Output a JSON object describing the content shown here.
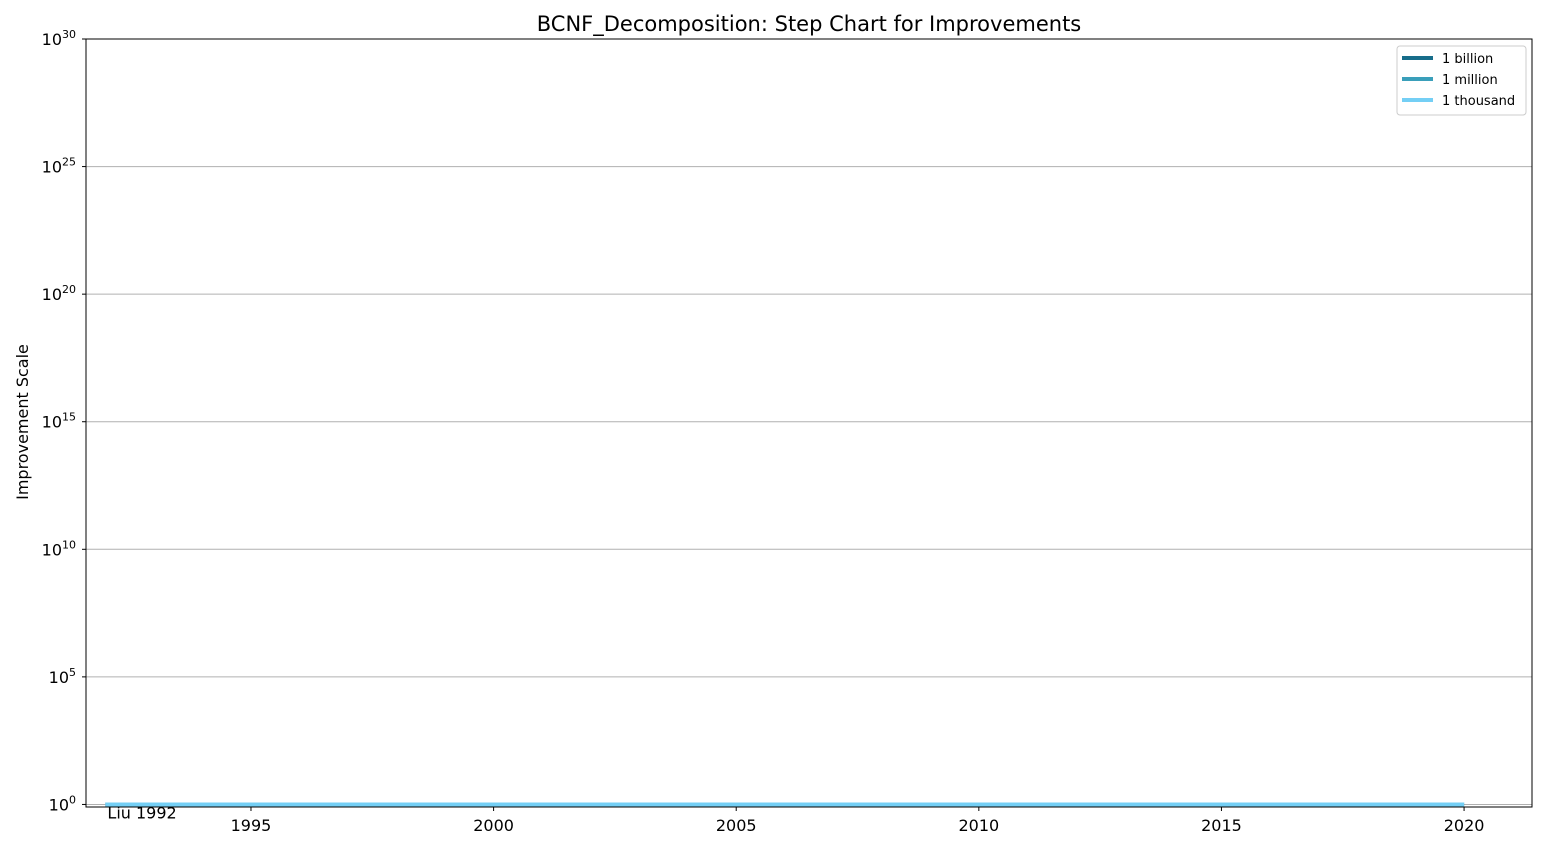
{
  "chart_data": {
    "type": "line",
    "step": true,
    "title": "BCNF_Decomposition: Step Chart for Improvements",
    "xlabel": "",
    "ylabel": "Improvement Scale",
    "y_scale": "log",
    "xlim": [
      1991.6,
      2021.4
    ],
    "ylim_exponent": [
      -0.1,
      30
    ],
    "x_ticks": [
      1995,
      2000,
      2005,
      2010,
      2015,
      2020
    ],
    "y_tick_exponents": [
      0,
      5,
      10,
      15,
      20,
      25,
      30
    ],
    "y_tick_base": "10",
    "grid": "horizontal",
    "legend_position": "top-right",
    "series": [
      {
        "name": "1 billion",
        "color": "#176d8a",
        "x": [
          1992,
          2020
        ],
        "y": [
          1,
          1
        ]
      },
      {
        "name": "1 million",
        "color": "#3a9fba",
        "x": [
          1992,
          2020
        ],
        "y": [
          1,
          1
        ]
      },
      {
        "name": "1 thousand",
        "color": "#74cff5",
        "x": [
          1992,
          2020
        ],
        "y": [
          1,
          1
        ]
      }
    ],
    "annotations": [
      {
        "text": "Liu 1992",
        "x": 1992,
        "y": 1
      }
    ]
  }
}
